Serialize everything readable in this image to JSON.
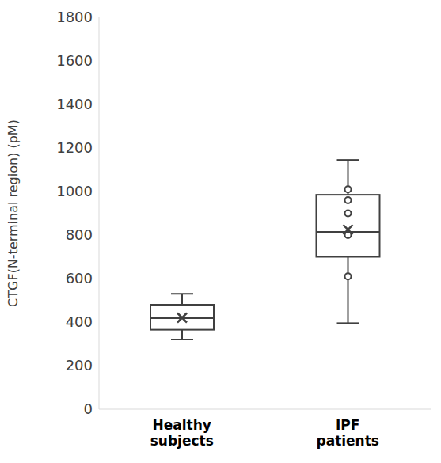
{
  "chart_data": {
    "type": "box",
    "y_label": "CTGF(N-terminal region) (pM)",
    "categories": [
      "Healthy subjects",
      "IPF patients"
    ],
    "boxes": [
      {
        "min": 320,
        "q1": 365,
        "median": 418,
        "q3": 480,
        "max": 530,
        "mean": 420,
        "points": []
      },
      {
        "min": 395,
        "q1": 700,
        "median": 815,
        "q3": 985,
        "max": 1145,
        "mean": 825,
        "points": [
          1010,
          960,
          900,
          800,
          610
        ]
      }
    ],
    "color": "#404040",
    "ylim": [
      0,
      1800
    ],
    "yticks": [
      0,
      200,
      400,
      600,
      800,
      1000,
      1200,
      1400,
      1600,
      1800
    ],
    "grid": false
  }
}
